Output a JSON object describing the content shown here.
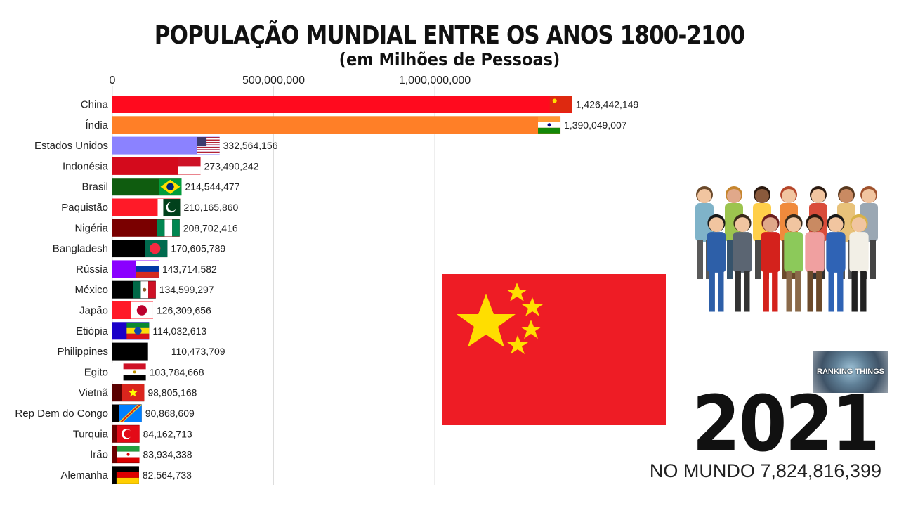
{
  "header": {
    "title": "POPULAÇÃO MUNDIAL ENTRE OS ANOS 1800-2100",
    "subtitle": "(em Milhões de Pessoas)"
  },
  "chart_data": {
    "type": "bar",
    "orientation": "horizontal",
    "title": "POPULAÇÃO MUNDIAL ENTRE OS ANOS 1800-2100",
    "subtitle": "(em Milhões de Pessoas)",
    "x_ticks": [
      0,
      500000000,
      1000000000
    ],
    "x_tick_labels": [
      "0",
      "500,000,000",
      "1,000,000,000"
    ],
    "xlim": [
      0,
      1500000000
    ],
    "grid": true,
    "categories": [
      "China",
      "Índia",
      "Estados Unidos",
      "Indonésia",
      "Brasil",
      "Paquistão",
      "Nigéria",
      "Bangladesh",
      "Rússia",
      "México",
      "Japão",
      "Etiópia",
      "Philippines",
      "Egito",
      "Vietnã",
      "Rep Dem do Congo",
      "Turquia",
      "Irão",
      "Alemanha"
    ],
    "values": [
      1426442149,
      1390049007,
      332564156,
      273490242,
      214544477,
      210165860,
      208702416,
      170605789,
      143714582,
      134599297,
      126309656,
      114032613,
      110473709,
      103784668,
      98805168,
      90868609,
      84162713,
      83934338,
      82564733
    ],
    "value_labels": [
      "1,426,442,149",
      "1,390,049,007",
      "332,564,156",
      "273,490,242",
      "214,544,477",
      "210,165,860",
      "208,702,416",
      "170,605,789",
      "143,714,582",
      "134,599,297",
      "126,309,656",
      "114,032,613",
      "110,473,709",
      "103,784,668",
      "98,805,168",
      "90,868,609",
      "84,162,713",
      "83,934,338",
      "82,564,733"
    ],
    "bar_colors": [
      "#ff0a1e",
      "#ff7f27",
      "#8b82ff",
      "#d40a1c",
      "#0f5c0f",
      "#ff1a28",
      "#7a0000",
      "#000000",
      "#8a00ff",
      "#000000",
      "#ff1a28",
      "#1a00c8",
      "#000000",
      "#ffffff",
      "#5a0000",
      "#000000",
      "#6a0000",
      "#6a0000",
      "#000000"
    ],
    "flag_icons": [
      "china-flag-icon",
      "india-flag-icon",
      "usa-flag-icon",
      "indonesia-flag-icon",
      "brazil-flag-icon",
      "pakistan-flag-icon",
      "nigeria-flag-icon",
      "bangladesh-flag-icon",
      "russia-flag-icon",
      "mexico-flag-icon",
      "japan-flag-icon",
      "ethiopia-flag-icon",
      "",
      "egypt-flag-icon",
      "vietnam-flag-icon",
      "drc-flag-icon",
      "turkey-flag-icon",
      "iran-flag-icon",
      "germany-flag-icon"
    ]
  },
  "side": {
    "year": "2021",
    "world_total": "NO MUNDO 7,824,816,399",
    "logo_text": "RANKING THINGS",
    "leader_flag_icon": "china-flag-icon",
    "people_icon": "crowd-of-people-illustration"
  }
}
